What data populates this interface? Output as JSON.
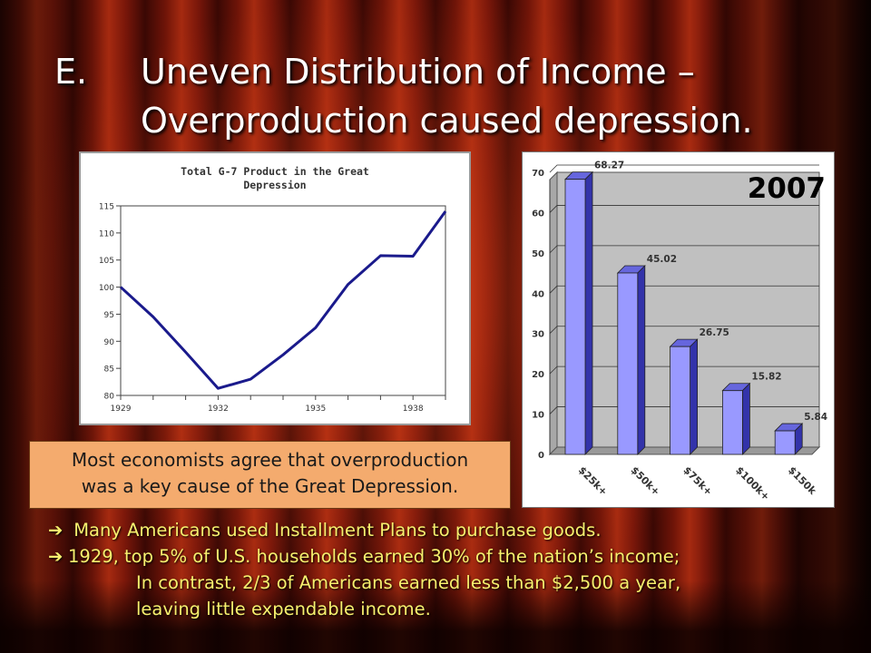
{
  "title": {
    "letter": "E.",
    "line1": "Uneven Distribution of Income –",
    "line2": "Overproduction caused depression."
  },
  "callout": {
    "line1": "Most economists agree that overproduction",
    "line2": "was a key cause of the Great Depression."
  },
  "bullets": [
    {
      "arrow": "➔",
      "text": " Many Americans used Installment Plans to purchase goods."
    },
    {
      "arrow": "➔",
      "text": "1929, top 5% of U.S. households earned 30% of the nation’s income;"
    },
    {
      "arrow": "",
      "text": "In contrast, 2/3 of Americans earned less than $2,500 a year,"
    },
    {
      "arrow": "",
      "text": "leaving little expendable income."
    }
  ],
  "colors": {
    "line": "#1a1a8c",
    "bar_front": "#9999ff",
    "bar_side": "#3333aa",
    "bar_top": "#6666dd",
    "plot_bg": "#c0c0c0",
    "bullet_text": "#f7f06e",
    "callout_bg": "#f4ab6e"
  },
  "chart_data": [
    {
      "type": "line",
      "title": "Total G-7 Product in the Great Depression",
      "title_lines": [
        "Total G-7 Product in the Great",
        "Depression"
      ],
      "x": [
        1929,
        1930,
        1931,
        1932,
        1933,
        1934,
        1935,
        1936,
        1937,
        1938,
        1939
      ],
      "values": [
        100,
        94.5,
        88,
        81.3,
        83,
        87.5,
        92.5,
        100.5,
        105.8,
        105.7,
        114
      ],
      "xlim": [
        1929,
        1939
      ],
      "ylim": [
        80,
        115
      ],
      "yticks": [
        "115",
        "110",
        "105",
        "100",
        "95",
        "90",
        "85",
        "80"
      ],
      "xticks": [
        "1929",
        "1932",
        "1935",
        "1938"
      ],
      "xticks_values": [
        1929,
        1932,
        1935,
        1938
      ],
      "grid": false
    },
    {
      "type": "bar",
      "title": "2007",
      "categories": [
        "$25k+",
        "$50k+",
        "$75k+",
        "$100k+",
        "$150k"
      ],
      "values": [
        68.27,
        45.02,
        26.75,
        15.82,
        5.84
      ],
      "value_labels": [
        "68.27",
        "45.02",
        "26.75",
        "15.82",
        "5.84"
      ],
      "ylim": [
        0,
        70
      ],
      "yticks": [
        "70",
        "60",
        "50",
        "40",
        "30",
        "20",
        "10",
        "0"
      ],
      "grid": true
    }
  ]
}
